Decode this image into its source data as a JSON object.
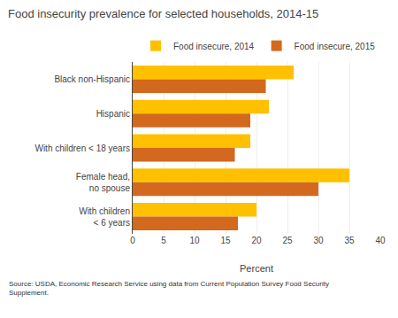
{
  "chart_data": {
    "type": "bar",
    "orientation": "horizontal",
    "title": "Food insecurity prevalence for selected households, 2014-15",
    "categories": [
      "Black non-Hispanic",
      "Hispanic",
      "With children < 18 years",
      "Female head,\nno spouse",
      "With children\n< 6 years"
    ],
    "series": [
      {
        "name": "Food insecure, 2014",
        "color": "#FFC000",
        "values": [
          26.0,
          22.0,
          19.0,
          35.0,
          20.0
        ]
      },
      {
        "name": "Food insecure, 2015",
        "color": "#D2691E",
        "values": [
          21.5,
          19.0,
          16.5,
          30.0,
          17.0
        ]
      }
    ],
    "xlabel": "Percent",
    "xlim": [
      0,
      40
    ],
    "xticks": [
      0,
      5,
      10,
      15,
      20,
      25,
      30,
      35,
      40
    ],
    "grid": true,
    "legend": "top right",
    "annotations": [
      "Source: USDA, Economic Research Service using data from Current Population Survey Food Security\nSupplement."
    ]
  }
}
